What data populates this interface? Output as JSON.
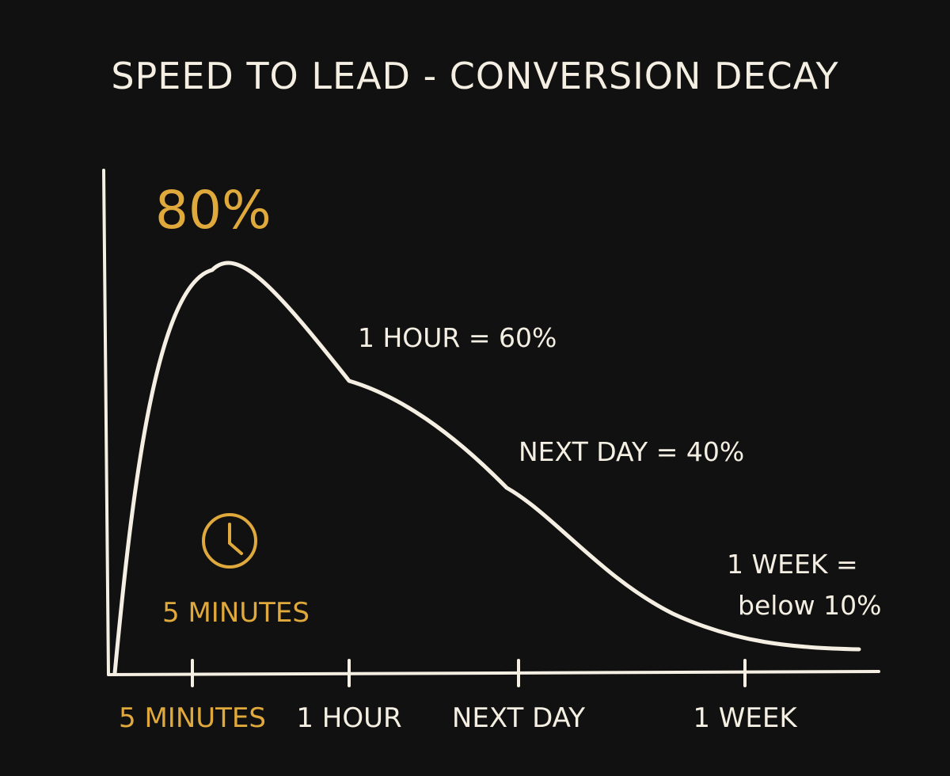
{
  "chart_data": {
    "type": "line",
    "title": "SPEED TO LEAD - CONVERSION DECAY",
    "xlabel": "",
    "ylabel": "",
    "categories": [
      "5 MINUTES",
      "1 HOUR",
      "NEXT DAY",
      "1 WEEK"
    ],
    "values": [
      80,
      60,
      40,
      8
    ],
    "ylim": [
      0,
      100
    ],
    "grid": false,
    "accent_color": "#e0a93c",
    "line_color": "#f4efe2",
    "background_color": "#111111",
    "peak_label": "80%",
    "clock_icon": "clock-icon",
    "clock_label": "5 MINUTES",
    "annotations": [
      {
        "lines": [
          "1 HOUR = 60%"
        ]
      },
      {
        "lines": [
          "NEXT DAY = 40%"
        ]
      },
      {
        "lines": [
          "1 WEEK =",
          "below 10%"
        ]
      }
    ]
  }
}
